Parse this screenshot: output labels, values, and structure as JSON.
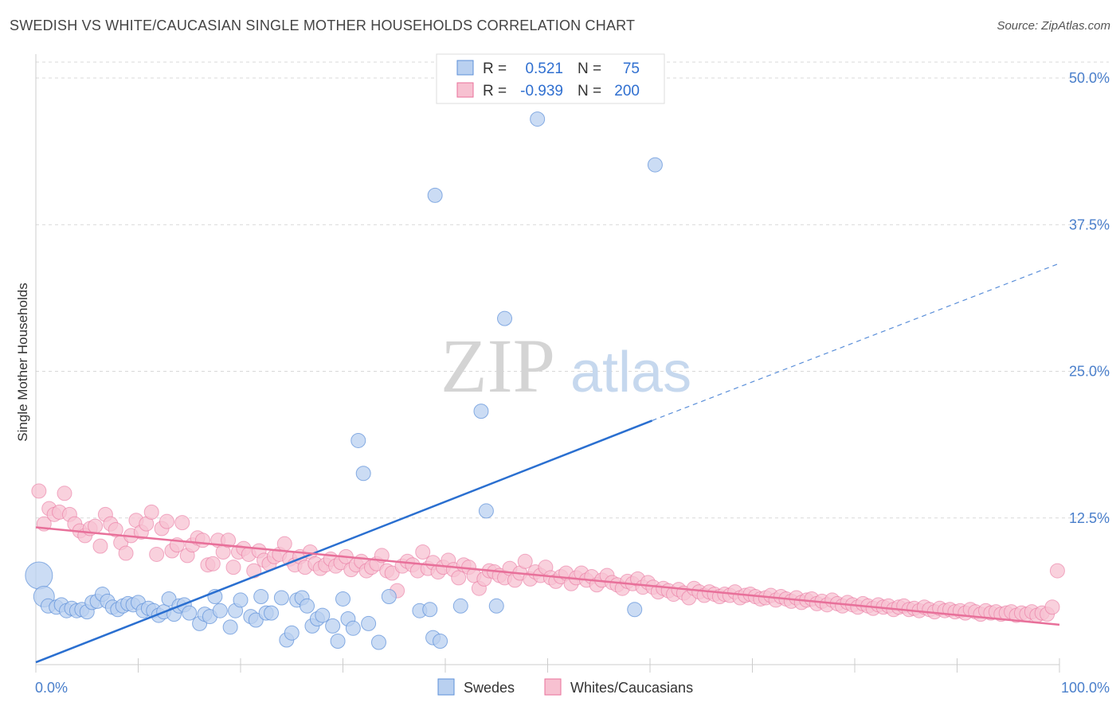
{
  "title": "SWEDISH VS WHITE/CAUCASIAN SINGLE MOTHER HOUSEHOLDS CORRELATION CHART",
  "source": "Source: ZipAtlas.com",
  "watermark": {
    "zip": "ZIP",
    "atlas": "atlas"
  },
  "legend": {
    "r_label": "R =",
    "n_label": "N =",
    "rows": [
      {
        "r": "0.521",
        "n": "75"
      },
      {
        "r": "-0.939",
        "n": "200"
      }
    ]
  },
  "colors": {
    "blue": "#5b8fd9",
    "blue_fill": "#b9d0f0",
    "pink": "#e8709a",
    "pink_fill": "#f7c1d1",
    "grid": "#d9d9d9"
  },
  "chart_data": {
    "type": "scatter",
    "title": "SWEDISH VS WHITE/CAUCASIAN SINGLE MOTHER HOUSEHOLDS CORRELATION CHART",
    "xlabel": "",
    "ylabel": "Single Mother Households",
    "xlim": [
      0,
      100
    ],
    "ylim": [
      0,
      50
    ],
    "x_tick_labels": [
      "0.0%",
      "100.0%"
    ],
    "y_tick_labels": [
      "12.5%",
      "25.0%",
      "37.5%",
      "50.0%"
    ],
    "y_ticks": [
      12.5,
      25.0,
      37.5,
      50.0
    ],
    "grid": true,
    "legend_position": "top-center",
    "series": [
      {
        "name": "Swedes",
        "color": "#5b8fd9",
        "points": [
          [
            0.3,
            7.6
          ],
          [
            0.8,
            5.8
          ],
          [
            1.2,
            5.0
          ],
          [
            2,
            4.9
          ],
          [
            2.5,
            5.1
          ],
          [
            3,
            4.6
          ],
          [
            3.5,
            4.8
          ],
          [
            4,
            4.6
          ],
          [
            4.5,
            4.7
          ],
          [
            5,
            4.5
          ],
          [
            5.5,
            5.3
          ],
          [
            6,
            5.4
          ],
          [
            6.5,
            6.0
          ],
          [
            7,
            5.4
          ],
          [
            7.5,
            4.9
          ],
          [
            8,
            4.7
          ],
          [
            8.5,
            5.0
          ],
          [
            9,
            5.2
          ],
          [
            9.5,
            5.1
          ],
          [
            10,
            5.3
          ],
          [
            10.5,
            4.6
          ],
          [
            11,
            4.8
          ],
          [
            11.5,
            4.6
          ],
          [
            12,
            4.2
          ],
          [
            12.5,
            4.5
          ],
          [
            13,
            5.6
          ],
          [
            13.5,
            4.3
          ],
          [
            14,
            5.0
          ],
          [
            14.5,
            5.1
          ],
          [
            15,
            4.4
          ],
          [
            16,
            3.5
          ],
          [
            16.5,
            4.3
          ],
          [
            17,
            4.1
          ],
          [
            17.5,
            5.8
          ],
          [
            18,
            4.6
          ],
          [
            19,
            3.2
          ],
          [
            19.5,
            4.6
          ],
          [
            20,
            5.5
          ],
          [
            21,
            4.1
          ],
          [
            21.5,
            3.8
          ],
          [
            22,
            5.8
          ],
          [
            22.5,
            4.4
          ],
          [
            23,
            4.4
          ],
          [
            24,
            5.7
          ],
          [
            24.5,
            2.1
          ],
          [
            25,
            2.7
          ],
          [
            25.5,
            5.5
          ],
          [
            26,
            5.7
          ],
          [
            26.5,
            5.0
          ],
          [
            27,
            3.3
          ],
          [
            27.5,
            3.9
          ],
          [
            28,
            4.2
          ],
          [
            29,
            3.3
          ],
          [
            29.5,
            2.0
          ],
          [
            30,
            5.6
          ],
          [
            30.5,
            3.9
          ],
          [
            31,
            3.1
          ],
          [
            31.5,
            19.1
          ],
          [
            32,
            16.3
          ],
          [
            32.5,
            3.5
          ],
          [
            33.5,
            1.9
          ],
          [
            34.5,
            5.8
          ],
          [
            37.5,
            4.6
          ],
          [
            38.5,
            4.7
          ],
          [
            38.8,
            2.3
          ],
          [
            39,
            40.0
          ],
          [
            39.5,
            2.0
          ],
          [
            41.5,
            5.0
          ],
          [
            43.5,
            21.6
          ],
          [
            44,
            13.1
          ],
          [
            45,
            5.0
          ],
          [
            45.8,
            29.5
          ],
          [
            49,
            46.5
          ],
          [
            58.5,
            4.7
          ],
          [
            60.5,
            42.6
          ]
        ],
        "point_x_positions_note": "",
        "trendline": {
          "x0": 0,
          "y0": 0.2,
          "x1": 60.2,
          "y1": 20.8,
          "dashed_to": [
            100,
            34.2
          ]
        }
      },
      {
        "name": "Whites/Caucasians",
        "color": "#e8709a",
        "points": [
          [
            0.3,
            14.8
          ],
          [
            0.8,
            12.0
          ],
          [
            1.3,
            13.3
          ],
          [
            1.8,
            12.8
          ],
          [
            2.3,
            13.0
          ],
          [
            2.8,
            14.6
          ],
          [
            3.3,
            12.8
          ],
          [
            3.8,
            12.0
          ],
          [
            4.3,
            11.4
          ],
          [
            4.8,
            11.0
          ],
          [
            5.3,
            11.6
          ],
          [
            5.8,
            11.8
          ],
          [
            6.3,
            10.1
          ],
          [
            6.8,
            12.8
          ],
          [
            7.3,
            12.0
          ],
          [
            7.8,
            11.5
          ],
          [
            8.3,
            10.4
          ],
          [
            8.8,
            9.5
          ],
          [
            9.3,
            11.0
          ],
          [
            9.8,
            12.3
          ],
          [
            10.3,
            11.3
          ],
          [
            10.8,
            12.0
          ],
          [
            11.3,
            13.0
          ],
          [
            11.8,
            9.4
          ],
          [
            12.3,
            11.6
          ],
          [
            12.8,
            12.2
          ],
          [
            13.3,
            9.7
          ],
          [
            13.8,
            10.2
          ],
          [
            14.3,
            12.1
          ],
          [
            14.8,
            9.3
          ],
          [
            15.3,
            10.2
          ],
          [
            15.8,
            10.8
          ],
          [
            16.3,
            10.6
          ],
          [
            16.8,
            8.5
          ],
          [
            17.3,
            8.6
          ],
          [
            17.8,
            10.6
          ],
          [
            18.3,
            9.6
          ],
          [
            18.8,
            10.6
          ],
          [
            19.3,
            8.3
          ],
          [
            19.8,
            9.6
          ],
          [
            20.3,
            9.9
          ],
          [
            20.8,
            9.4
          ],
          [
            21.3,
            8.0
          ],
          [
            21.8,
            9.7
          ],
          [
            22.3,
            8.9
          ],
          [
            22.8,
            8.6
          ],
          [
            23.3,
            9.2
          ],
          [
            23.8,
            9.4
          ],
          [
            24.3,
            10.3
          ],
          [
            24.8,
            9.0
          ],
          [
            25.3,
            8.5
          ],
          [
            25.8,
            9.2
          ],
          [
            26.3,
            8.3
          ],
          [
            26.8,
            9.6
          ],
          [
            27.3,
            8.6
          ],
          [
            27.8,
            8.2
          ],
          [
            28.3,
            8.5
          ],
          [
            28.8,
            9.0
          ],
          [
            29.3,
            8.4
          ],
          [
            29.8,
            8.7
          ],
          [
            30.3,
            9.2
          ],
          [
            30.8,
            8.1
          ],
          [
            31.3,
            8.5
          ],
          [
            31.8,
            8.8
          ],
          [
            32.3,
            8.0
          ],
          [
            32.8,
            8.3
          ],
          [
            33.3,
            8.6
          ],
          [
            33.8,
            9.3
          ],
          [
            34.3,
            8.0
          ],
          [
            34.8,
            7.8
          ],
          [
            35.3,
            6.3
          ],
          [
            35.8,
            8.4
          ],
          [
            36.3,
            8.8
          ],
          [
            36.8,
            8.5
          ],
          [
            37.3,
            8.0
          ],
          [
            37.8,
            9.6
          ],
          [
            38.3,
            8.2
          ],
          [
            38.8,
            8.7
          ],
          [
            39.3,
            7.9
          ],
          [
            39.8,
            8.3
          ],
          [
            40.3,
            8.9
          ],
          [
            40.8,
            8.1
          ],
          [
            41.3,
            7.4
          ],
          [
            41.8,
            8.5
          ],
          [
            42.3,
            8.3
          ],
          [
            42.8,
            7.6
          ],
          [
            43.3,
            6.5
          ],
          [
            43.8,
            7.3
          ],
          [
            44.3,
            8.0
          ],
          [
            44.8,
            7.9
          ],
          [
            45.3,
            7.6
          ],
          [
            45.8,
            7.4
          ],
          [
            46.3,
            8.2
          ],
          [
            46.8,
            7.2
          ],
          [
            47.3,
            7.8
          ],
          [
            47.8,
            8.8
          ],
          [
            48.3,
            7.3
          ],
          [
            48.8,
            7.9
          ],
          [
            49.3,
            7.6
          ],
          [
            49.8,
            8.3
          ],
          [
            50.3,
            7.4
          ],
          [
            50.8,
            7.1
          ],
          [
            51.3,
            7.5
          ],
          [
            51.8,
            7.8
          ],
          [
            52.3,
            6.9
          ],
          [
            52.8,
            7.4
          ],
          [
            53.3,
            7.8
          ],
          [
            53.8,
            7.2
          ],
          [
            54.3,
            7.5
          ],
          [
            54.8,
            6.8
          ],
          [
            55.3,
            7.2
          ],
          [
            55.8,
            7.6
          ],
          [
            56.3,
            7.0
          ],
          [
            56.8,
            6.8
          ],
          [
            57.3,
            6.5
          ],
          [
            57.8,
            7.1
          ],
          [
            58.3,
            6.9
          ],
          [
            58.8,
            7.3
          ],
          [
            59.3,
            6.6
          ],
          [
            59.8,
            7.0
          ],
          [
            60.3,
            6.6
          ],
          [
            60.8,
            6.2
          ],
          [
            61.3,
            6.5
          ],
          [
            61.8,
            6.3
          ],
          [
            62.3,
            6.0
          ],
          [
            62.8,
            6.4
          ],
          [
            63.3,
            6.1
          ],
          [
            63.8,
            5.7
          ],
          [
            64.3,
            6.5
          ],
          [
            64.8,
            6.2
          ],
          [
            65.3,
            5.9
          ],
          [
            65.8,
            6.2
          ],
          [
            66.3,
            6.0
          ],
          [
            66.8,
            5.8
          ],
          [
            67.3,
            6.0
          ],
          [
            67.8,
            5.9
          ],
          [
            68.3,
            6.2
          ],
          [
            68.8,
            5.7
          ],
          [
            69.3,
            5.9
          ],
          [
            69.8,
            6.0
          ],
          [
            70.3,
            5.8
          ],
          [
            70.8,
            5.6
          ],
          [
            71.3,
            5.7
          ],
          [
            71.8,
            5.9
          ],
          [
            72.3,
            5.5
          ],
          [
            72.8,
            5.8
          ],
          [
            73.3,
            5.6
          ],
          [
            73.8,
            5.4
          ],
          [
            74.3,
            5.7
          ],
          [
            74.8,
            5.3
          ],
          [
            75.3,
            5.5
          ],
          [
            75.8,
            5.6
          ],
          [
            76.3,
            5.2
          ],
          [
            76.8,
            5.4
          ],
          [
            77.3,
            5.1
          ],
          [
            77.8,
            5.5
          ],
          [
            78.3,
            5.2
          ],
          [
            78.8,
            5.0
          ],
          [
            79.3,
            5.3
          ],
          [
            79.8,
            5.1
          ],
          [
            80.3,
            4.9
          ],
          [
            80.8,
            5.2
          ],
          [
            81.3,
            5.0
          ],
          [
            81.8,
            4.8
          ],
          [
            82.3,
            5.1
          ],
          [
            82.8,
            4.9
          ],
          [
            83.3,
            5.0
          ],
          [
            83.8,
            4.7
          ],
          [
            84.3,
            4.9
          ],
          [
            84.8,
            5.0
          ],
          [
            85.3,
            4.7
          ],
          [
            85.8,
            4.8
          ],
          [
            86.3,
            4.6
          ],
          [
            86.8,
            4.9
          ],
          [
            87.3,
            4.7
          ],
          [
            87.8,
            4.5
          ],
          [
            88.3,
            4.8
          ],
          [
            88.8,
            4.6
          ],
          [
            89.3,
            4.7
          ],
          [
            89.8,
            4.5
          ],
          [
            90.3,
            4.6
          ],
          [
            90.8,
            4.4
          ],
          [
            91.3,
            4.7
          ],
          [
            91.8,
            4.5
          ],
          [
            92.3,
            4.3
          ],
          [
            92.8,
            4.6
          ],
          [
            93.3,
            4.4
          ],
          [
            93.8,
            4.5
          ],
          [
            94.3,
            4.3
          ],
          [
            94.8,
            4.4
          ],
          [
            95.3,
            4.5
          ],
          [
            95.8,
            4.2
          ],
          [
            96.3,
            4.4
          ],
          [
            96.8,
            4.3
          ],
          [
            97.3,
            4.5
          ],
          [
            97.8,
            4.2
          ],
          [
            98.3,
            4.4
          ],
          [
            98.8,
            4.3
          ],
          [
            99.3,
            4.9
          ],
          [
            99.8,
            8.0
          ]
        ],
        "trendline": {
          "x0": 0,
          "y0": 11.7,
          "x1": 100,
          "y1": 3.4
        }
      }
    ]
  },
  "bottom_legend": [
    {
      "label": "Swedes"
    },
    {
      "label": "Whites/Caucasians"
    }
  ]
}
